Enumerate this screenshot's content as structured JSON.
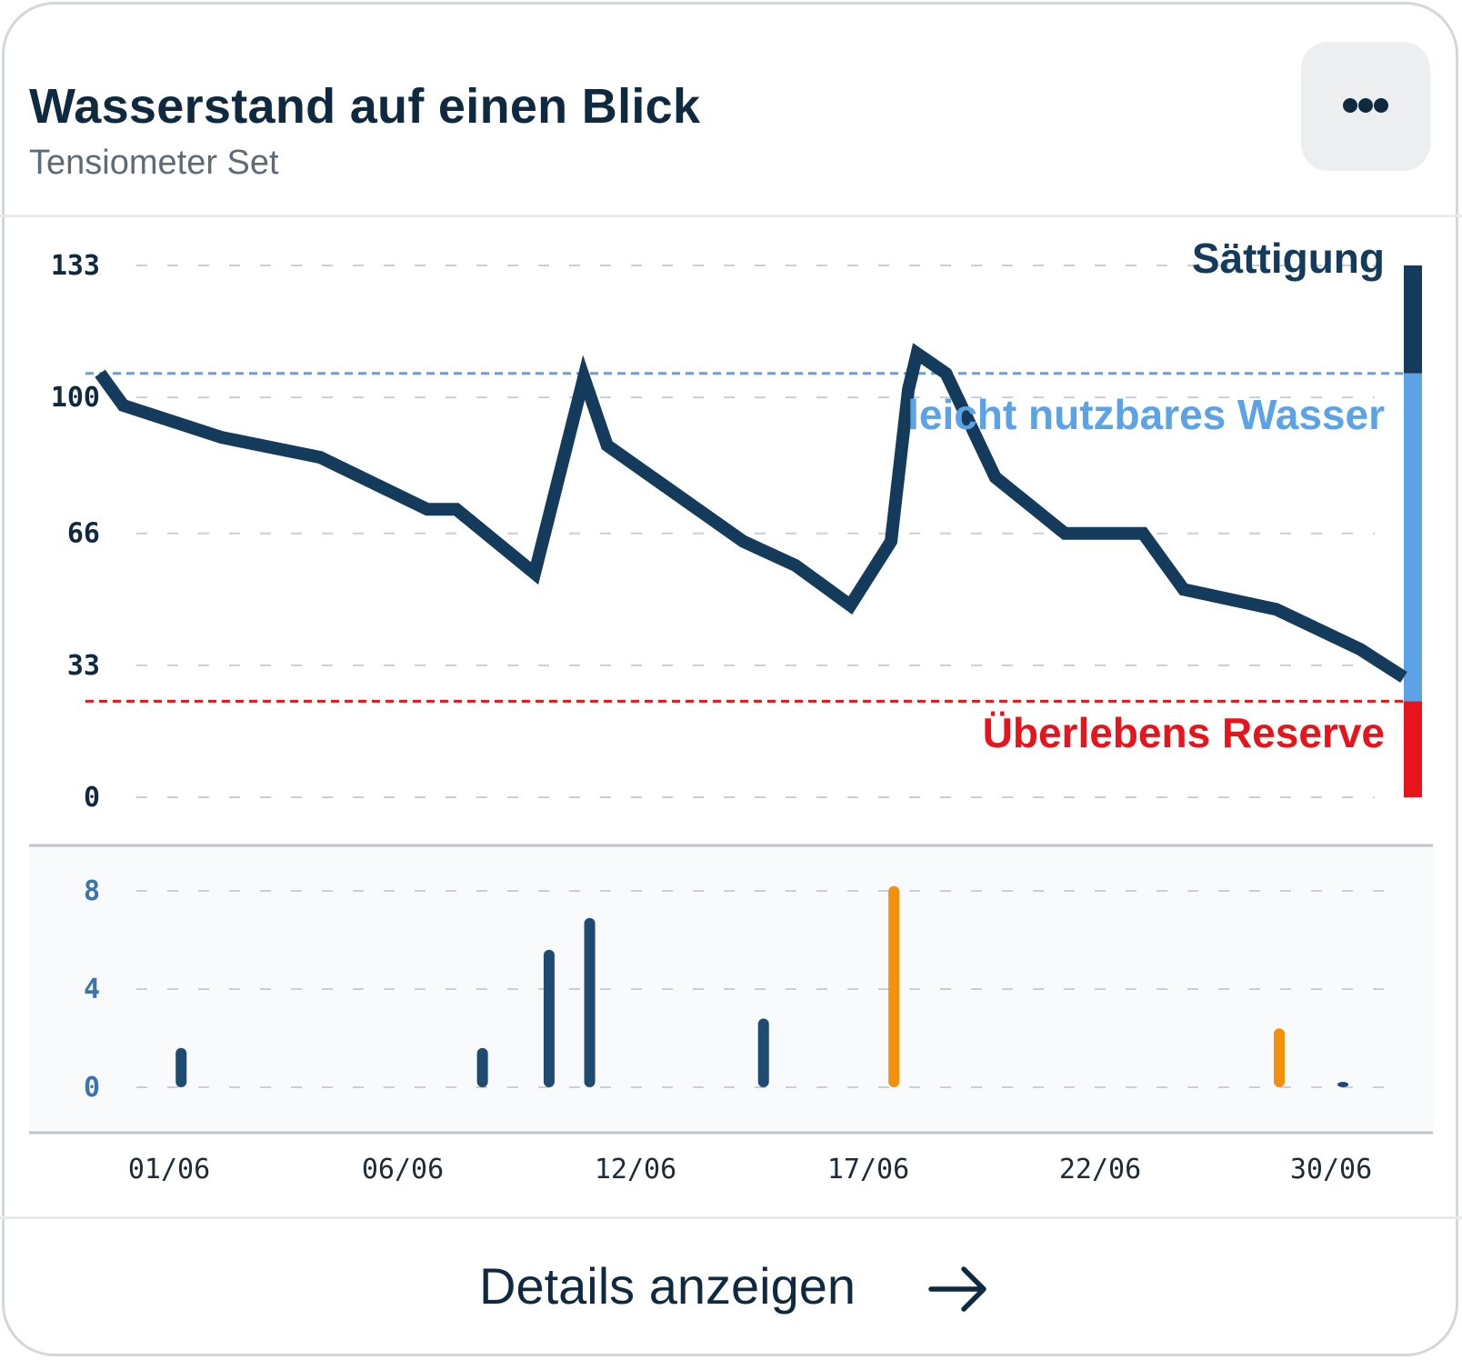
{
  "header": {
    "title": "Wasserstand auf einen Blick",
    "subtitle": "Tensiometer Set",
    "menu_icon": "more-horizontal-icon"
  },
  "footer": {
    "label": "Details anzeigen",
    "icon": "arrow-right-icon"
  },
  "chart_data": [
    {
      "type": "line",
      "y_ticks": [
        "133",
        "100",
        "66",
        "33",
        "0"
      ],
      "ylim": [
        0,
        133
      ],
      "grid": true,
      "series": [
        {
          "color": "#143a5c",
          "x": [
            0.0,
            0.8,
            4.2,
            7.6,
            11.3,
            12.3,
            15.0,
            16.7,
            17.5,
            22.2,
            24.0,
            25.9,
            27.3,
            27.9,
            28.2,
            29.2,
            30.9,
            33.3,
            36.0,
            37.4,
            40.6,
            43.5,
            45.0
          ],
          "values": [
            106,
            98,
            90,
            85,
            72,
            72,
            56,
            105,
            88,
            64,
            58,
            48,
            64,
            102,
            111,
            106,
            80,
            66,
            66,
            52,
            47,
            37,
            30
          ]
        }
      ],
      "zones": [
        {
          "label": "Sättigung",
          "from": 106,
          "to": 133,
          "color": "#143a5c"
        },
        {
          "label": "leicht nutzbares Wasser",
          "from": 24,
          "to": 106,
          "color": "#5ba3e6"
        },
        {
          "label": "Überlebens Reserve",
          "from": 0,
          "to": 24,
          "color": "#e8141c"
        }
      ],
      "threshold_lines": [
        {
          "value": 106,
          "color": "#5ba3e6"
        },
        {
          "value": 24,
          "color": "#e8141c"
        }
      ]
    },
    {
      "type": "bar",
      "y_ticks": [
        "8",
        "4",
        "0"
      ],
      "ylim": [
        0,
        8
      ],
      "grid": true,
      "x_ticks": [
        "01/06",
        "06/06",
        "12/06",
        "17/06",
        "22/06",
        "30/06"
      ],
      "bars": [
        {
          "x": 2.8,
          "value": 1.6,
          "color": "#1f4a72"
        },
        {
          "x": 13.2,
          "value": 1.6,
          "color": "#1f4a72"
        },
        {
          "x": 15.5,
          "value": 5.6,
          "color": "#1f4a72"
        },
        {
          "x": 16.9,
          "value": 6.9,
          "color": "#1f4a72"
        },
        {
          "x": 22.9,
          "value": 2.8,
          "color": "#1f4a72"
        },
        {
          "x": 27.4,
          "value": 8.2,
          "color": "#f5900f"
        },
        {
          "x": 40.7,
          "value": 2.4,
          "color": "#f5900f"
        },
        {
          "x": 42.9,
          "value": 0.1,
          "color": "#1f4a72"
        }
      ]
    }
  ]
}
